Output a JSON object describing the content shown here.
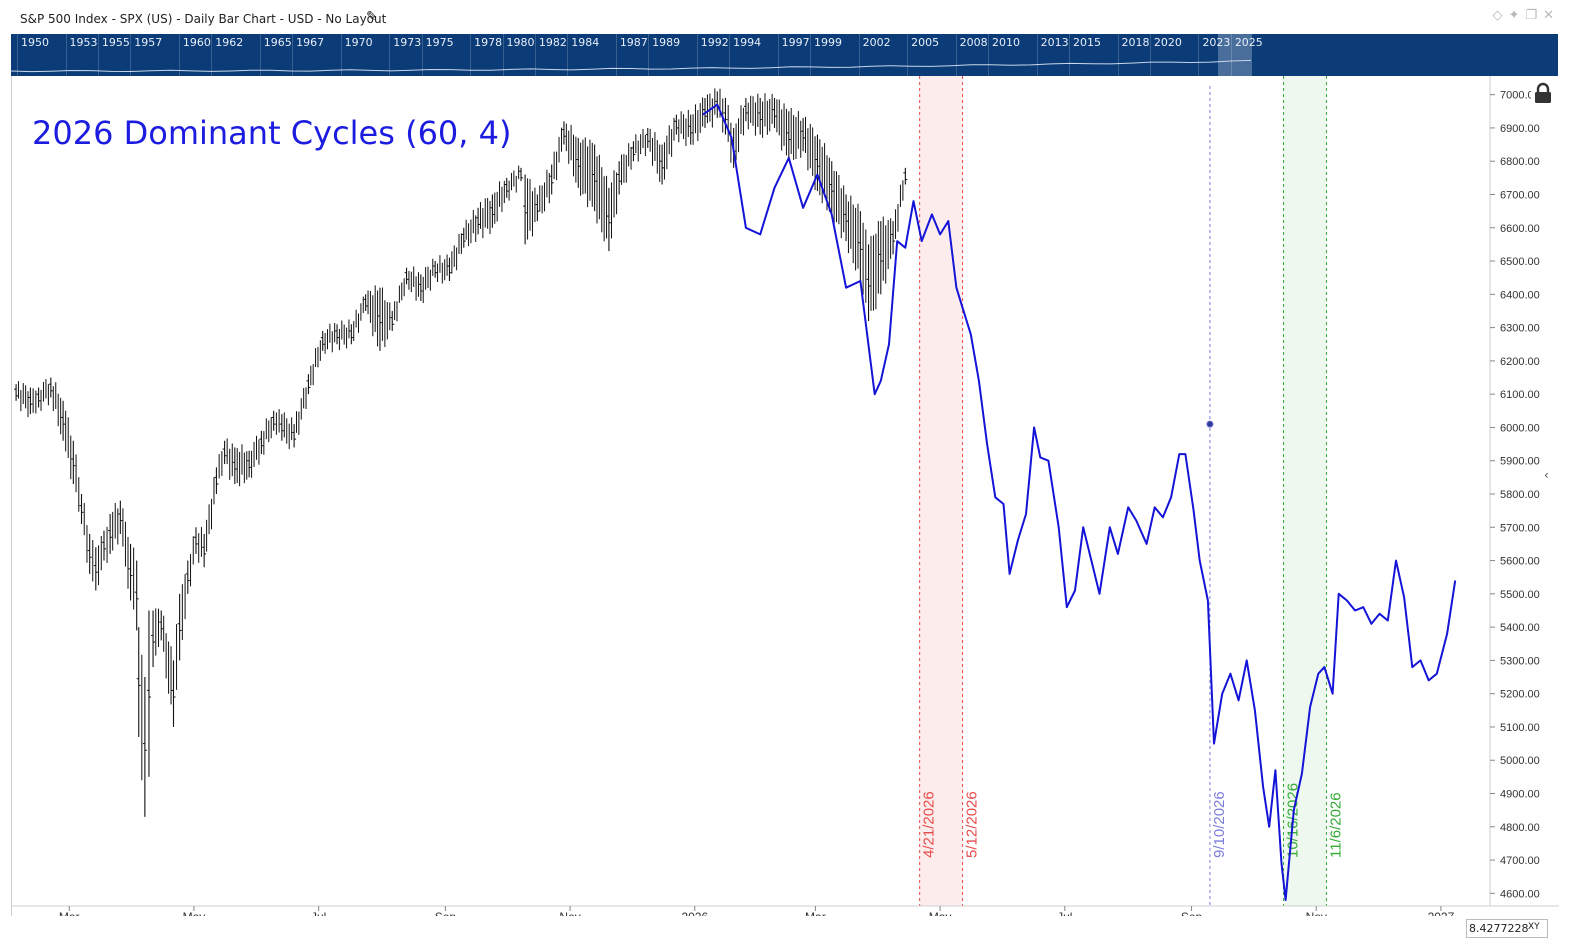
{
  "header": {
    "title": "S&P 500 Index - SPX (US) - Daily Bar Chart - USD - No Layout",
    "edit_icon": "pencil-icon",
    "tool_icons": [
      "diamond-icon",
      "pin-icon",
      "window-icon",
      "close-icon"
    ]
  },
  "navigator": {
    "years": [
      "1950",
      "1953",
      "1955",
      "1957",
      "1960",
      "1962",
      "1965",
      "1967",
      "1970",
      "1973",
      "1975",
      "1978",
      "1980",
      "1982",
      "1984",
      "1987",
      "1989",
      "1992",
      "1994",
      "1997",
      "1999",
      "2002",
      "2005",
      "2008",
      "2010",
      "2013",
      "2015",
      "2018",
      "2020",
      "2023",
      "2025"
    ],
    "background": "#0b3c78"
  },
  "overlay_title": "2026 Dominant Cycles (60, 4)",
  "corner": {
    "value": "8.4277228",
    "xy_label": "XY"
  },
  "chart_data": {
    "type": "line",
    "title": "2026 Dominant Cycles (60, 4)",
    "x_axis": {
      "type": "date",
      "range": [
        "2025-02-01",
        "2027-01-25"
      ],
      "tick_labels": [
        {
          "date": "2025-03-01",
          "label": "Mar"
        },
        {
          "date": "2025-05-01",
          "label": "May"
        },
        {
          "date": "2025-07-01",
          "label": "Jul"
        },
        {
          "date": "2025-09-01",
          "label": "Sep"
        },
        {
          "date": "2025-11-01",
          "label": "Nov"
        },
        {
          "date": "2026-01-01",
          "label": "2026"
        },
        {
          "date": "2026-03-01",
          "label": "Mar"
        },
        {
          "date": "2026-05-01",
          "label": "May"
        },
        {
          "date": "2026-07-01",
          "label": "Jul"
        },
        {
          "date": "2026-09-01",
          "label": "Sep"
        },
        {
          "date": "2026-11-01",
          "label": "Nov"
        },
        {
          "date": "2027-01-01",
          "label": "2027"
        }
      ]
    },
    "y_axis": {
      "range": [
        4550,
        7050
      ],
      "ticks": [
        7000,
        6900,
        6800,
        6700,
        6600,
        6500,
        6400,
        6300,
        6200,
        6100,
        6000,
        5900,
        5800,
        5700,
        5600,
        5500,
        5400,
        5300,
        5200,
        5100,
        5000,
        4900,
        4800,
        4700,
        4600
      ],
      "tick_format": "2dp"
    },
    "grid": false,
    "series": [
      {
        "name": "",
        "kind": "daily bars",
        "color": "#111111",
        "points": [
          [
            "2025-02-03",
            6080,
            6130
          ],
          [
            "2025-02-10",
            6040,
            6120
          ],
          [
            "2025-02-14",
            6060,
            6120
          ],
          [
            "2025-02-20",
            6090,
            6150
          ],
          [
            "2025-02-26",
            5960,
            6080
          ],
          [
            "2025-03-03",
            5830,
            5960
          ],
          [
            "2025-03-07",
            5710,
            5800
          ],
          [
            "2025-03-11",
            5560,
            5680
          ],
          [
            "2025-03-14",
            5510,
            5640
          ],
          [
            "2025-03-18",
            5600,
            5690
          ],
          [
            "2025-03-21",
            5620,
            5740
          ],
          [
            "2025-03-26",
            5680,
            5780
          ],
          [
            "2025-03-31",
            5480,
            5650
          ],
          [
            "2025-04-03",
            5390,
            5600
          ],
          [
            "2025-04-04",
            5070,
            5400
          ],
          [
            "2025-04-07",
            4830,
            5250
          ],
          [
            "2025-04-09",
            4950,
            5450
          ],
          [
            "2025-04-11",
            5280,
            5450
          ],
          [
            "2025-04-15",
            5360,
            5450
          ],
          [
            "2025-04-21",
            5100,
            5300
          ],
          [
            "2025-04-24",
            5300,
            5500
          ],
          [
            "2025-04-28",
            5500,
            5600
          ],
          [
            "2025-05-02",
            5620,
            5700
          ],
          [
            "2025-05-06",
            5580,
            5680
          ],
          [
            "2025-05-12",
            5800,
            5880
          ],
          [
            "2025-05-16",
            5890,
            5960
          ],
          [
            "2025-05-21",
            5830,
            5940
          ],
          [
            "2025-05-28",
            5850,
            5930
          ],
          [
            "2025-06-03",
            5920,
            5990
          ],
          [
            "2025-06-09",
            5990,
            6050
          ],
          [
            "2025-06-13",
            5960,
            6040
          ],
          [
            "2025-06-19",
            5940,
            6010
          ],
          [
            "2025-06-26",
            6100,
            6160
          ],
          [
            "2025-07-03",
            6230,
            6290
          ],
          [
            "2025-07-10",
            6250,
            6310
          ],
          [
            "2025-07-17",
            6250,
            6310
          ],
          [
            "2025-07-24",
            6350,
            6400
          ],
          [
            "2025-07-31",
            6230,
            6420
          ],
          [
            "2025-08-06",
            6290,
            6350
          ],
          [
            "2025-08-13",
            6430,
            6480
          ],
          [
            "2025-08-20",
            6380,
            6460
          ],
          [
            "2025-08-27",
            6450,
            6500
          ],
          [
            "2025-09-03",
            6440,
            6510
          ],
          [
            "2025-09-10",
            6540,
            6600
          ],
          [
            "2025-09-17",
            6580,
            6660
          ],
          [
            "2025-09-24",
            6600,
            6700
          ],
          [
            "2025-10-01",
            6690,
            6750
          ],
          [
            "2025-10-08",
            6740,
            6780
          ],
          [
            "2025-10-10",
            6550,
            6760
          ],
          [
            "2025-10-16",
            6620,
            6700
          ],
          [
            "2025-10-23",
            6700,
            6790
          ],
          [
            "2025-10-29",
            6850,
            6920
          ],
          [
            "2025-11-05",
            6720,
            6870
          ],
          [
            "2025-11-13",
            6650,
            6850
          ],
          [
            "2025-11-20",
            6530,
            6720
          ],
          [
            "2025-11-25",
            6700,
            6800
          ],
          [
            "2025-12-02",
            6800,
            6860
          ],
          [
            "2025-12-09",
            6840,
            6900
          ],
          [
            "2025-12-16",
            6730,
            6850
          ],
          [
            "2025-12-23",
            6880,
            6940
          ],
          [
            "2025-12-30",
            6850,
            6940
          ],
          [
            "2026-01-06",
            6900,
            6990
          ],
          [
            "2026-01-12",
            6930,
            7010
          ],
          [
            "2026-01-16",
            6880,
            6990
          ],
          [
            "2026-01-20",
            6780,
            6900
          ],
          [
            "2026-01-26",
            6920,
            6990
          ],
          [
            "2026-02-02",
            6880,
            6990
          ],
          [
            "2026-02-09",
            6900,
            6990
          ],
          [
            "2026-02-16",
            6800,
            6950
          ],
          [
            "2026-02-23",
            6830,
            6930
          ],
          [
            "2026-03-02",
            6710,
            6880
          ],
          [
            "2026-03-09",
            6640,
            6800
          ],
          [
            "2026-03-16",
            6560,
            6700
          ],
          [
            "2026-03-23",
            6440,
            6650
          ],
          [
            "2026-03-27",
            6320,
            6550
          ],
          [
            "2026-04-02",
            6400,
            6620
          ],
          [
            "2026-04-08",
            6520,
            6620
          ],
          [
            "2026-04-14",
            6730,
            6780
          ]
        ]
      },
      {
        "name": "",
        "kind": "projection line",
        "color": "#1414d9",
        "points": [
          [
            "2026-01-05",
            6940
          ],
          [
            "2026-01-12",
            6970
          ],
          [
            "2026-01-19",
            6870
          ],
          [
            "2026-01-26",
            6600
          ],
          [
            "2026-02-02",
            6580
          ],
          [
            "2026-02-09",
            6720
          ],
          [
            "2026-02-16",
            6810
          ],
          [
            "2026-02-23",
            6660
          ],
          [
            "2026-03-02",
            6760
          ],
          [
            "2026-03-09",
            6640
          ],
          [
            "2026-03-16",
            6420
          ],
          [
            "2026-03-23",
            6440
          ],
          [
            "2026-03-30",
            6100
          ],
          [
            "2026-04-02",
            6140
          ],
          [
            "2026-04-06",
            6250
          ],
          [
            "2026-04-10",
            6560
          ],
          [
            "2026-04-14",
            6540
          ],
          [
            "2026-04-18",
            6680
          ],
          [
            "2026-04-22",
            6560
          ],
          [
            "2026-04-27",
            6640
          ],
          [
            "2026-05-01",
            6580
          ],
          [
            "2026-05-05",
            6620
          ],
          [
            "2026-05-09",
            6420
          ],
          [
            "2026-05-13",
            6340
          ],
          [
            "2026-05-16",
            6280
          ],
          [
            "2026-05-20",
            6140
          ],
          [
            "2026-05-24",
            5950
          ],
          [
            "2026-05-28",
            5790
          ],
          [
            "2026-06-01",
            5770
          ],
          [
            "2026-06-04",
            5560
          ],
          [
            "2026-06-08",
            5660
          ],
          [
            "2026-06-12",
            5740
          ],
          [
            "2026-06-16",
            6000
          ],
          [
            "2026-06-19",
            5910
          ],
          [
            "2026-06-23",
            5900
          ],
          [
            "2026-06-28",
            5700
          ],
          [
            "2026-07-02",
            5460
          ],
          [
            "2026-07-06",
            5510
          ],
          [
            "2026-07-10",
            5700
          ],
          [
            "2026-07-14",
            5600
          ],
          [
            "2026-07-18",
            5500
          ],
          [
            "2026-07-23",
            5700
          ],
          [
            "2026-07-27",
            5620
          ],
          [
            "2026-08-01",
            5760
          ],
          [
            "2026-08-05",
            5720
          ],
          [
            "2026-08-10",
            5650
          ],
          [
            "2026-08-14",
            5760
          ],
          [
            "2026-08-18",
            5730
          ],
          [
            "2026-08-22",
            5790
          ],
          [
            "2026-08-26",
            5920
          ],
          [
            "2026-08-29",
            5920
          ],
          [
            "2026-09-02",
            5750
          ],
          [
            "2026-09-05",
            5600
          ],
          [
            "2026-09-09",
            5480
          ],
          [
            "2026-09-12",
            5050
          ],
          [
            "2026-09-16",
            5200
          ],
          [
            "2026-09-20",
            5260
          ],
          [
            "2026-09-24",
            5180
          ],
          [
            "2026-09-28",
            5300
          ],
          [
            "2026-10-02",
            5150
          ],
          [
            "2026-10-06",
            4920
          ],
          [
            "2026-10-09",
            4800
          ],
          [
            "2026-10-12",
            4970
          ],
          [
            "2026-10-15",
            4690
          ],
          [
            "2026-10-17",
            4580
          ],
          [
            "2026-10-21",
            4850
          ],
          [
            "2026-10-25",
            4960
          ],
          [
            "2026-10-29",
            5160
          ],
          [
            "2026-11-02",
            5260
          ],
          [
            "2026-11-05",
            5280
          ],
          [
            "2026-11-09",
            5200
          ],
          [
            "2026-11-12",
            5500
          ],
          [
            "2026-11-16",
            5480
          ],
          [
            "2026-11-20",
            5450
          ],
          [
            "2026-11-24",
            5460
          ],
          [
            "2026-11-28",
            5410
          ],
          [
            "2026-12-02",
            5440
          ],
          [
            "2026-12-06",
            5420
          ],
          [
            "2026-12-10",
            5600
          ],
          [
            "2026-12-14",
            5490
          ],
          [
            "2026-12-18",
            5280
          ],
          [
            "2026-12-22",
            5300
          ],
          [
            "2026-12-26",
            5240
          ],
          [
            "2026-12-30",
            5260
          ],
          [
            "2027-01-04",
            5380
          ],
          [
            "2027-01-08",
            5540
          ]
        ]
      }
    ],
    "markers": [
      {
        "date": "2026-09-10",
        "y": 6010,
        "color": "#6a6adf"
      }
    ],
    "cycle_bands": [
      {
        "start": "2026-04-21",
        "end": "2026-05-12",
        "label_start": "4/21/2026",
        "label_end": "5/12/2026",
        "line_color": "#e84a4a",
        "fill": "#fdecec"
      },
      {
        "start": "2026-10-16",
        "end": "2026-11-06",
        "label_start": "10/16/2026",
        "label_end": "11/6/2026",
        "line_color": "#33aa33",
        "fill": "#eef8ee"
      }
    ],
    "cycle_lines": [
      {
        "date": "2026-09-10",
        "label": "9/10/2026",
        "line_color": "#7c7cdc"
      }
    ]
  }
}
